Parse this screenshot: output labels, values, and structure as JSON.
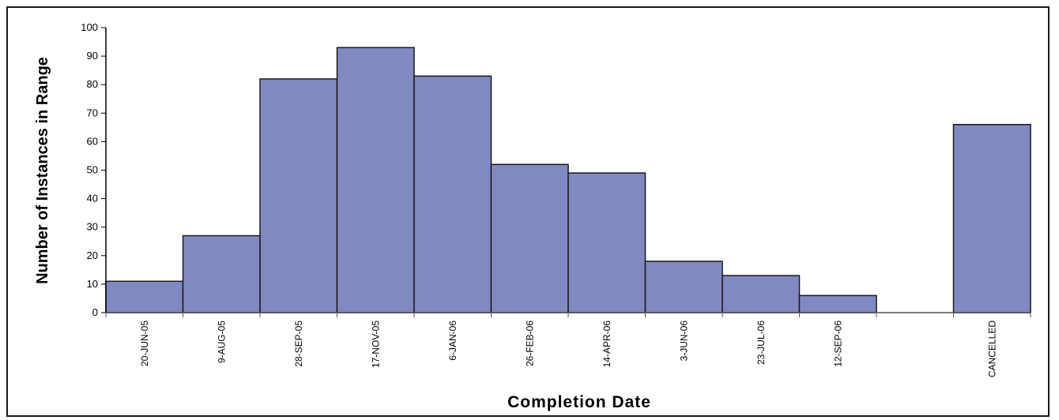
{
  "chart_data": {
    "type": "bar",
    "title": "",
    "xlabel": "Completion Date",
    "ylabel": "Number of Instances in Range",
    "ylim": [
      0,
      100
    ],
    "yticks": [
      0,
      10,
      20,
      30,
      40,
      50,
      60,
      70,
      80,
      90,
      100
    ],
    "grid": false,
    "categories": [
      "20-JUN-05",
      "9-AUG-05",
      "28-SEP-05",
      "17-NOV-05",
      "6-JAN-06",
      "26-FEB-06",
      "14-APR-06",
      "3-JUN-06",
      "23-JUL-06",
      "12-SEP-06",
      "",
      "CANCELLED"
    ],
    "values": [
      11,
      27,
      82,
      93,
      83,
      52,
      49,
      18,
      13,
      6,
      0,
      66
    ],
    "colors": {
      "bar": "#8189c2",
      "bar_edge": "#1a1a1a",
      "axis": "#000000",
      "frame": "#1a1a1a"
    }
  }
}
